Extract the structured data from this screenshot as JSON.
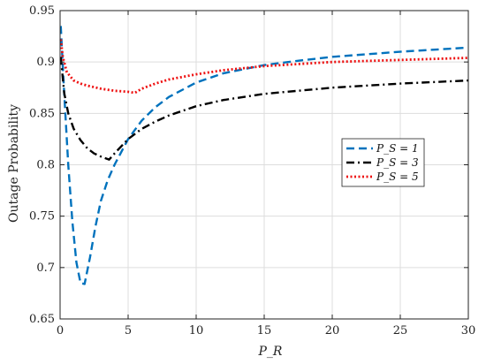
{
  "chart_data": {
    "type": "line",
    "xlabel": "P_R",
    "ylabel": "Outage Probability",
    "xlim": [
      0,
      30
    ],
    "ylim": [
      0.65,
      0.95
    ],
    "xticks": [
      "0",
      "5",
      "10",
      "15",
      "20",
      "25",
      "30"
    ],
    "yticks": [
      "0.65",
      "0.7",
      "0.75",
      "0.8",
      "0.85",
      "0.9",
      "0.95"
    ],
    "grid": true,
    "legend_position": "right",
    "series": [
      {
        "name": "P_S = 1",
        "legend_label": "P_S = 1",
        "color": "#0072BD",
        "dash": "dashed",
        "x": [
          0.05,
          0.3,
          0.6,
          0.9,
          1.2,
          1.5,
          1.8,
          2.2,
          2.6,
          3.0,
          3.5,
          4.0,
          5.0,
          6.0,
          7.0,
          8.0,
          10.0,
          12.0,
          15.0,
          18.0,
          20.0,
          25.0,
          30.0
        ],
        "y": [
          0.935,
          0.87,
          0.8,
          0.745,
          0.705,
          0.685,
          0.684,
          0.71,
          0.74,
          0.765,
          0.785,
          0.8,
          0.825,
          0.843,
          0.856,
          0.866,
          0.88,
          0.889,
          0.897,
          0.902,
          0.905,
          0.91,
          0.914
        ]
      },
      {
        "name": "P_S = 3",
        "legend_label": "P_S = 3",
        "color": "#000000",
        "dash": "dashdot",
        "x": [
          0.05,
          0.3,
          0.6,
          1.0,
          1.5,
          2.0,
          2.5,
          3.0,
          3.6,
          4.0,
          5.0,
          6.0,
          7.0,
          8.0,
          10.0,
          12.0,
          15.0,
          20.0,
          25.0,
          30.0
        ],
        "y": [
          0.905,
          0.87,
          0.85,
          0.835,
          0.824,
          0.816,
          0.811,
          0.808,
          0.805,
          0.811,
          0.825,
          0.835,
          0.842,
          0.848,
          0.857,
          0.863,
          0.869,
          0.875,
          0.879,
          0.882
        ]
      },
      {
        "name": "P_S = 5",
        "legend_label": "P_S = 5",
        "color": "#EE1111",
        "dash": "dotted",
        "x": [
          0.05,
          0.2,
          0.5,
          1.0,
          1.5,
          2.0,
          3.0,
          4.0,
          5.0,
          5.5,
          6.0,
          7.0,
          8.0,
          10.0,
          12.0,
          15.0,
          20.0,
          25.0,
          30.0
        ],
        "y": [
          0.922,
          0.905,
          0.89,
          0.882,
          0.879,
          0.877,
          0.874,
          0.872,
          0.871,
          0.87,
          0.874,
          0.879,
          0.883,
          0.888,
          0.892,
          0.896,
          0.9,
          0.902,
          0.904
        ]
      }
    ]
  }
}
